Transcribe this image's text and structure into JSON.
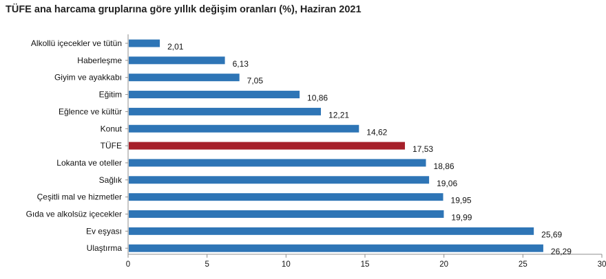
{
  "chart_data": {
    "type": "bar",
    "orientation": "horizontal",
    "title": "TÜFE ana harcama gruplarına göre yıllık değişim oranları (%), Haziran 2021",
    "categories": [
      "Alkollü içecekler ve tütün",
      "Haberleşme",
      "Giyim ve ayakkabı",
      "Eğitim",
      "Eğlence ve kültür",
      "Konut",
      "TÜFE",
      "Lokanta ve oteller",
      "Sağlık",
      "Çeşitli mal ve hizmetler",
      "Gıda ve alkolsüz içecekler",
      "Ev eşyası",
      "Ulaştırma"
    ],
    "values": [
      2.01,
      6.13,
      7.05,
      10.86,
      12.21,
      14.62,
      17.53,
      18.86,
      19.06,
      19.95,
      19.99,
      25.69,
      26.29
    ],
    "value_labels": [
      "2,01",
      "6,13",
      "7,05",
      "10,86",
      "12,21",
      "14,62",
      "17,53",
      "18,86",
      "19,06",
      "19,95",
      "19,99",
      "25,69",
      "26,29"
    ],
    "xlim": [
      0,
      30
    ],
    "xticks": [
      0,
      5,
      10,
      15,
      20,
      25,
      30
    ],
    "xlabel": "",
    "ylabel": "",
    "grid": false,
    "legend": "none",
    "colors": {
      "default": "#2e75b6",
      "highlight": "#a6202a"
    },
    "highlight_category": "TÜFE"
  }
}
